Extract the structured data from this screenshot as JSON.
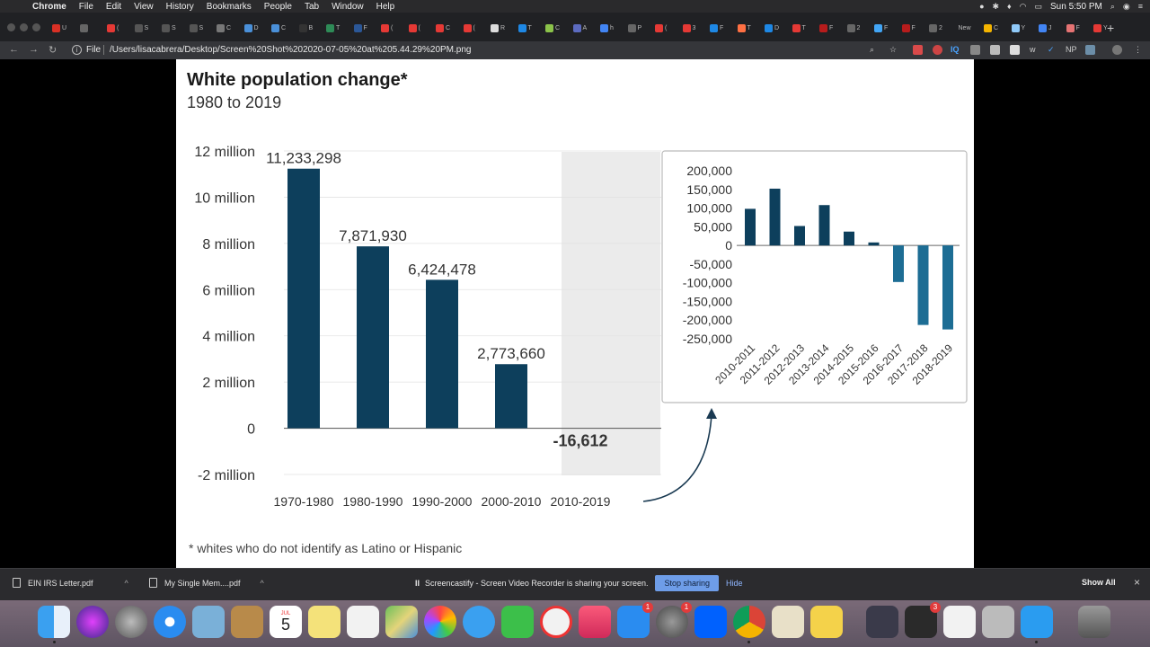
{
  "menubar": {
    "app": "Chrome",
    "items": [
      "File",
      "Edit",
      "View",
      "History",
      "Bookmarks",
      "People",
      "Tab",
      "Window",
      "Help"
    ],
    "clock": "Sun 5:50 PM"
  },
  "tabs": [
    {
      "t": "U",
      "c": "#d93025"
    },
    {
      "t": "",
      "c": "#666"
    },
    {
      "t": "(",
      "c": "#e53935"
    },
    {
      "t": "S",
      "c": "#555"
    },
    {
      "t": "S",
      "c": "#555"
    },
    {
      "t": "S",
      "c": "#555"
    },
    {
      "t": "C",
      "c": "#777"
    },
    {
      "t": "D",
      "c": "#4a90d9"
    },
    {
      "t": "C",
      "c": "#4a90d9"
    },
    {
      "t": "B",
      "c": "#333"
    },
    {
      "t": "T",
      "c": "#2e8b57"
    },
    {
      "t": "F",
      "c": "#2b5797"
    },
    {
      "t": "(",
      "c": "#e53935"
    },
    {
      "t": "(",
      "c": "#e53935"
    },
    {
      "t": "C",
      "c": "#e53935"
    },
    {
      "t": "(",
      "c": "#e53935"
    },
    {
      "t": "R",
      "c": "#ddd"
    },
    {
      "t": "T",
      "c": "#1e88e5"
    },
    {
      "t": "C",
      "c": "#8bc34a"
    },
    {
      "t": "A",
      "c": "#5c6bc0"
    },
    {
      "t": "h",
      "c": "#4285f4"
    },
    {
      "t": "P",
      "c": "#666"
    },
    {
      "t": "(",
      "c": "#e53935"
    },
    {
      "t": "3",
      "c": "#e53935"
    },
    {
      "t": "F",
      "c": "#1e88e5"
    },
    {
      "t": "T",
      "c": "#ff7043"
    },
    {
      "t": "D",
      "c": "#1e88e5"
    },
    {
      "t": "T",
      "c": "#e53935"
    },
    {
      "t": "F",
      "c": "#b71c1c"
    },
    {
      "t": "2",
      "c": "#666"
    },
    {
      "t": "F",
      "c": "#42a5f5"
    },
    {
      "t": "F",
      "c": "#b71c1c"
    },
    {
      "t": "2",
      "c": "#666"
    },
    {
      "t": "New",
      "c": "#202124"
    },
    {
      "t": "C",
      "c": "#f4b400"
    },
    {
      "t": "Y",
      "c": "#90caf9"
    },
    {
      "t": "J",
      "c": "#4285f4"
    },
    {
      "t": "F",
      "c": "#e57373"
    },
    {
      "t": "Y",
      "c": "#e53935"
    }
  ],
  "toolbar": {
    "back": "←",
    "forward": "→",
    "reload": "↻",
    "info": "i",
    "file_label": "File",
    "url": "/Users/lisacabrera/Desktop/Screen%20Shot%202020-07-05%20at%205.44.29%20PM.png",
    "icon_iq": "IQ",
    "icon_w": "w",
    "icon_np": "NP"
  },
  "chart_page": {
    "title": "White population change*",
    "subtitle": "1980 to 2019",
    "footnote": "* whites who do not identify as Latino or Hispanic"
  },
  "chart_data": [
    {
      "type": "bar",
      "categories": [
        "1970-1980",
        "1980-1990",
        "1990-2000",
        "2000-2010",
        "2010-2019"
      ],
      "values": [
        11233298,
        7871930,
        6424478,
        2773660,
        -16612
      ],
      "data_labels": [
        "11,233,298",
        "7,871,930",
        "6,424,478",
        "2,773,660",
        "-16,612"
      ],
      "y_ticks": [
        -2000000,
        0,
        2000000,
        4000000,
        6000000,
        8000000,
        10000000,
        12000000
      ],
      "y_tick_labels": [
        "-2 million",
        "0",
        "2 million",
        "4 million",
        "6 million",
        "8 million",
        "10 million",
        "12 million"
      ],
      "ylim": [
        -2000000,
        12000000
      ],
      "highlighted_category": "2010-2019",
      "bar_color": "#0d3f5c",
      "highlight_color": "#ebebeb"
    },
    {
      "type": "bar",
      "categories": [
        "2010-2011",
        "2011-2012",
        "2012-2013",
        "2013-2014",
        "2014-2015",
        "2015-2016",
        "2016-2017",
        "2017-2018",
        "2018-2019"
      ],
      "values": [
        98000,
        152000,
        52000,
        108000,
        37000,
        8000,
        -98000,
        -213000,
        -225000
      ],
      "y_ticks": [
        200000,
        150000,
        100000,
        50000,
        0,
        -50000,
        -100000,
        -150000,
        -200000,
        -250000
      ],
      "y_tick_labels": [
        "200,000",
        "150,000",
        "100,000",
        "50,000",
        "0",
        "-50,000",
        "-100,000",
        "-150,000",
        "-200,000",
        "-250,000"
      ],
      "ylim": [
        -250000,
        200000
      ],
      "positive_color": "#0d3f5c",
      "negative_color": "#1d6d94"
    }
  ],
  "downloads": {
    "items": [
      "EIN IRS Letter.pdf",
      "My Single Mem....pdf"
    ],
    "show_all": "Show All",
    "close": "×"
  },
  "share_bar": {
    "pause": "II",
    "message": "Screencastify - Screen Video Recorder is sharing your screen.",
    "stop": "Stop sharing",
    "hide": "Hide"
  },
  "dock": {
    "calendar_month": "JUL",
    "calendar_day": "5",
    "badges": [
      "1",
      "1",
      "3"
    ]
  }
}
